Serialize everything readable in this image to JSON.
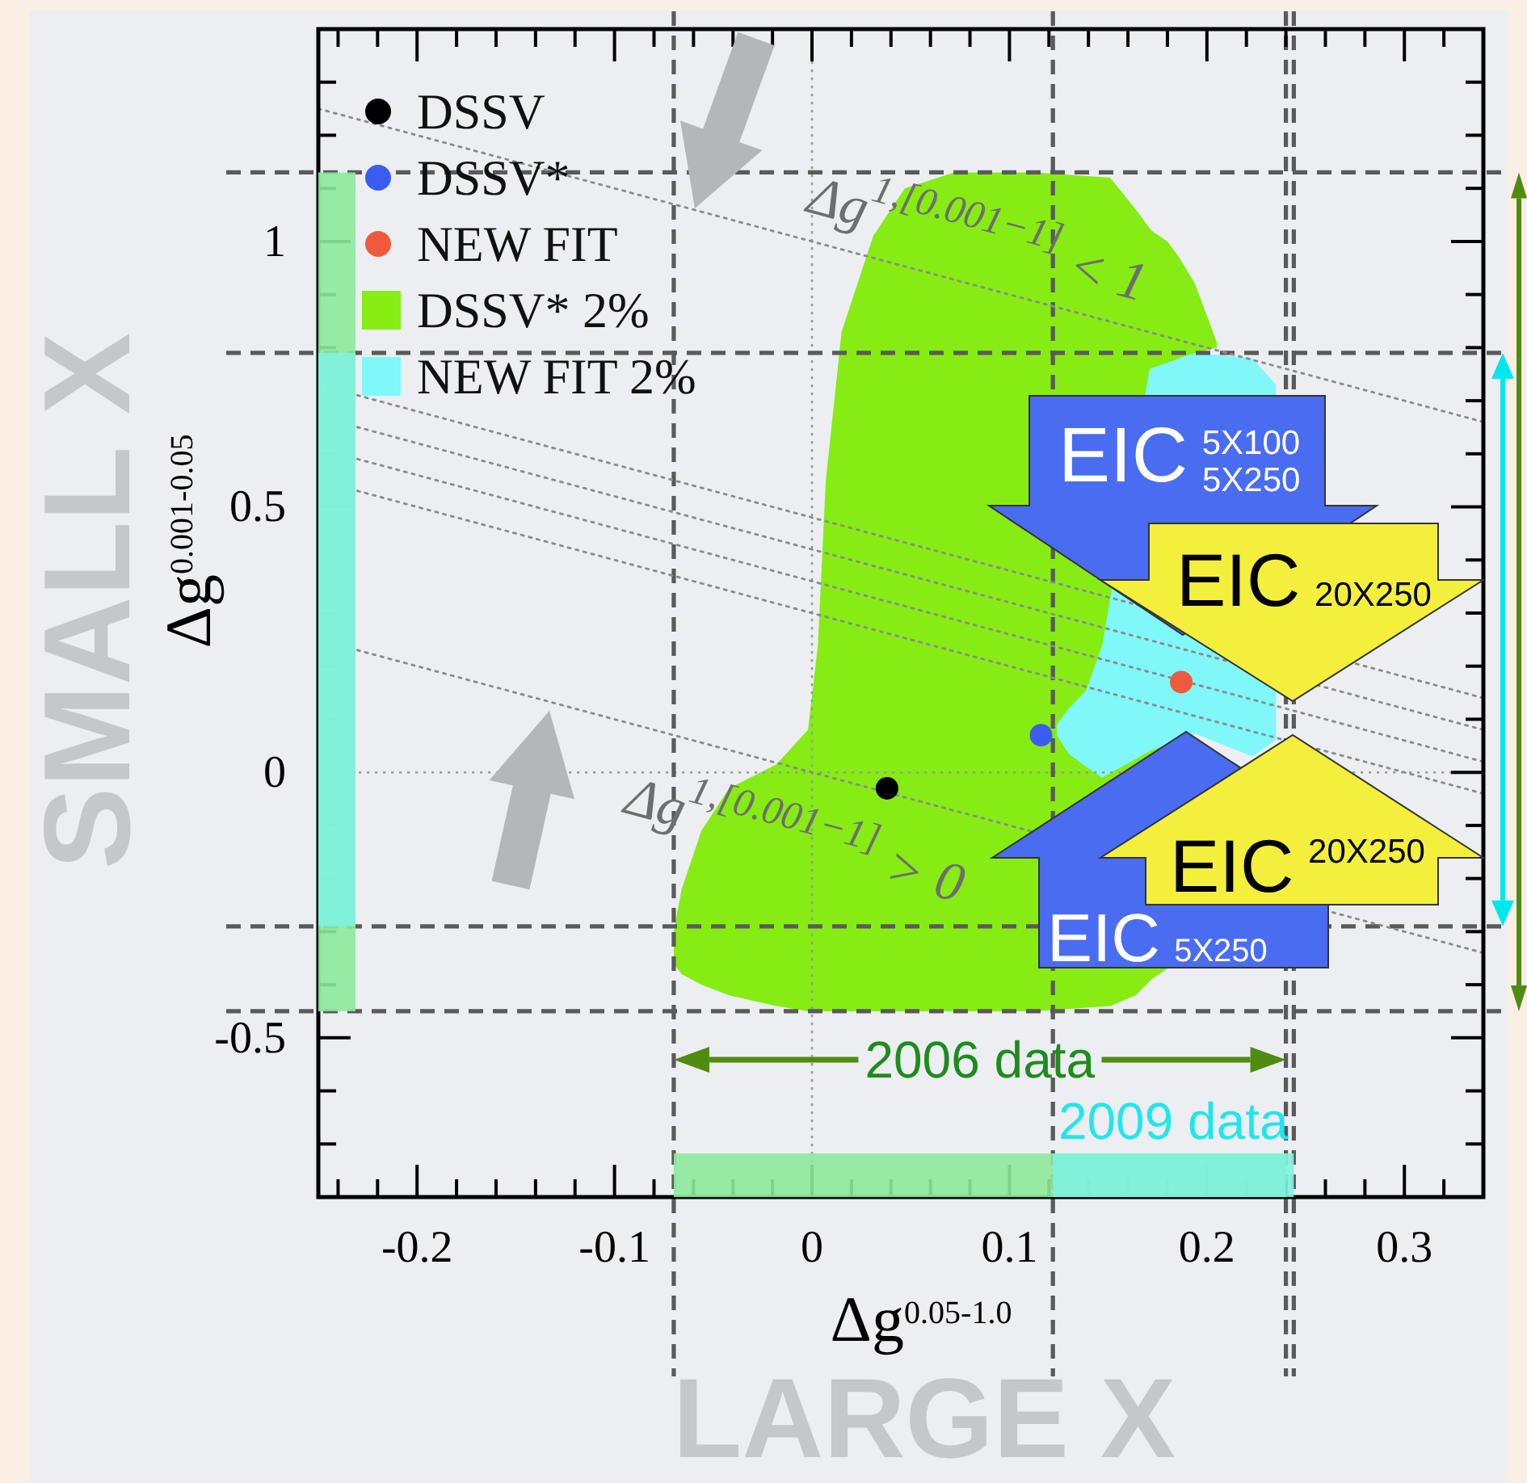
{
  "chart_data": {
    "type": "scatter",
    "xlabel": "Δg$^{0.05-1.0}$",
    "ylabel": "Δg$^{0.001-0.05}$",
    "xlim": [
      -0.25,
      0.34
    ],
    "ylim": [
      -0.8,
      1.4
    ],
    "xticks": [
      {
        "value": -0.24,
        "label": null
      },
      {
        "value": -0.22,
        "label": null
      },
      -0.2,
      {
        "value": -0.18,
        "label": null
      },
      {
        "value": -0.16,
        "label": null
      },
      {
        "value": -0.14,
        "label": null
      },
      {
        "value": -0.12,
        "label": null
      },
      -0.1,
      {
        "value": -0.08,
        "label": null
      },
      {
        "value": -0.06,
        "label": null
      },
      {
        "value": -0.04,
        "label": null
      },
      {
        "value": -0.02,
        "label": null
      },
      0,
      {
        "value": 0.02,
        "label": null
      },
      {
        "value": 0.04,
        "label": null
      },
      {
        "value": 0.06,
        "label": null
      },
      {
        "value": 0.08,
        "label": null
      },
      0.1,
      {
        "value": 0.12,
        "label": null
      },
      {
        "value": 0.14,
        "label": null
      },
      {
        "value": 0.16,
        "label": null
      },
      {
        "value": 0.18,
        "label": null
      },
      0.2,
      {
        "value": 0.22,
        "label": null
      },
      {
        "value": 0.24,
        "label": null
      },
      {
        "value": 0.26,
        "label": null
      },
      {
        "value": 0.28,
        "label": null
      },
      0.3,
      {
        "value": 0.32,
        "label": null
      }
    ],
    "yticks": [
      {
        "value": -0.7,
        "label": null
      },
      {
        "value": -0.6,
        "label": null
      },
      -0.5,
      {
        "value": -0.4,
        "label": null
      },
      {
        "value": -0.3,
        "label": null
      },
      {
        "value": -0.2,
        "label": null
      },
      {
        "value": -0.1,
        "label": null
      },
      0,
      {
        "value": 0.1,
        "label": null
      },
      {
        "value": 0.2,
        "label": null
      },
      {
        "value": 0.3,
        "label": null
      },
      {
        "value": 0.4,
        "label": null
      },
      0.5,
      {
        "value": 0.6,
        "label": null
      },
      {
        "value": 0.7,
        "label": null
      },
      {
        "value": 0.8,
        "label": null
      },
      {
        "value": 0.9,
        "label": null
      },
      1,
      {
        "value": 1.1,
        "label": null
      },
      {
        "value": 1.2,
        "label": null
      },
      {
        "value": 1.3,
        "label": null
      }
    ],
    "legend": "top left",
    "line_style": "dotted",
    "series": [
      {
        "name": "DSSV",
        "type": "scatter",
        "marker": "circle",
        "color": "#000000",
        "x": [
          0.038
        ],
        "values": [
          -0.03
        ]
      },
      {
        "name": "DSSV*",
        "type": "scatter",
        "marker": "circle",
        "color": "#3a5cf0",
        "x": [
          0.116
        ],
        "values": [
          0.07
        ]
      },
      {
        "name": "NEW FIT",
        "type": "scatter",
        "marker": "circle",
        "color": "#ee5a3c",
        "x": [
          0.187
        ],
        "values": [
          0.17
        ]
      },
      {
        "name": "DSSV* 2%",
        "type": "line",
        "color": "#86ec14",
        "x": [
          -0.07,
          -0.066,
          -0.056,
          -0.042,
          -0.018,
          -0.002,
          0.003,
          0.007,
          0.015,
          0.031,
          0.047,
          0.072,
          0.113,
          0.151,
          0.164,
          0.172,
          0.18,
          0.186,
          0.194,
          0.205
        ],
        "values": [
          null,
          null,
          null,
          null,
          null,
          null,
          null,
          null,
          null,
          null,
          null,
          null,
          null,
          null,
          null,
          null,
          null,
          null,
          null,
          null
        ],
        "upper": [
          -0.3,
          -0.22,
          -0.11,
          -0.03,
          0.015,
          0.08,
          0.24,
          0.55,
          0.83,
          1.01,
          1.1,
          1.13,
          1.13,
          1.12,
          1.06,
          1.02,
          1.0,
          0.97,
          0.92,
          0.81
        ],
        "lower": [
          -0.36,
          -0.38,
          -0.4,
          -0.42,
          -0.44,
          -0.45,
          -0.45,
          -0.45,
          -0.45,
          -0.45,
          -0.45,
          -0.45,
          -0.45,
          -0.44,
          -0.42,
          -0.39,
          -0.37,
          0.78,
          0.79,
          0.8
        ]
      },
      {
        "name": "NEW FIT 2%",
        "type": "line",
        "color": "#80f7f9",
        "x": [
          0.124,
          0.13,
          0.139,
          0.147,
          0.171,
          0.194,
          0.223,
          0.235
        ],
        "values": [
          null,
          null,
          null,
          null,
          null,
          null,
          null,
          null
        ],
        "upper": [
          0.09,
          0.12,
          0.155,
          0.24,
          0.76,
          0.79,
          0.78,
          0.73
        ],
        "lower": [
          0.07,
          0.035,
          0.01,
          -0.01,
          0.04,
          0.073,
          0.03,
          0.061
        ]
      },
      {
        "type": "line",
        "color": "#8a8a8a",
        "x": [
          -0.25,
          0.34
        ],
        "values": [
          1.25,
          0.66
        ]
      },
      {
        "type": "line",
        "color": "#8a8a8a",
        "x": [
          -0.25,
          0.34
        ],
        "values": [
          0.73,
          0.14
        ]
      },
      {
        "type": "line",
        "color": "#8a8a8a",
        "x": [
          -0.25,
          0.34
        ],
        "values": [
          0.67,
          0.08
        ]
      },
      {
        "type": "line",
        "color": "#8a8a8a",
        "x": [
          -0.25,
          0.34
        ],
        "values": [
          0.61,
          0.02
        ]
      },
      {
        "type": "line",
        "color": "#8a8a8a",
        "x": [
          -0.25,
          0.34
        ],
        "values": [
          0.55,
          -0.04
        ]
      },
      {
        "type": "line",
        "color": "#8a8a8a",
        "x": [
          -0.25,
          0.34
        ],
        "values": [
          0.25,
          -0.34
        ]
      }
    ],
    "ref_lines": [
      {
        "axis": "x",
        "value": 0,
        "color": "#9a9a9a",
        "line_style": "dotted"
      },
      {
        "axis": "y",
        "value": 0,
        "color": "#9a9a9a",
        "line_style": "dotted"
      },
      {
        "axis": "y",
        "value": 1.13,
        "color": "#5a5a5a",
        "line_style": "dashed"
      },
      {
        "axis": "y",
        "value": 0.79,
        "color": "#5a5a5a",
        "line_style": "dashed"
      },
      {
        "axis": "y",
        "value": -0.29,
        "color": "#5a5a5a",
        "line_style": "dashed"
      },
      {
        "axis": "y",
        "value": -0.45,
        "color": "#5a5a5a",
        "line_style": "dashed"
      },
      {
        "axis": "x",
        "value": -0.07,
        "color": "#5a5a5a",
        "line_style": "dashed"
      },
      {
        "axis": "x",
        "value": 0.122,
        "color": "#5a5a5a",
        "line_style": "dashed"
      },
      {
        "axis": "x",
        "value": 0.24,
        "color": "#5a5a5a",
        "line_style": "dashed"
      },
      {
        "axis": "x",
        "value": 0.244,
        "color": "#5a5a5a",
        "line_style": "dashed"
      }
    ],
    "annotations": [
      "Δg$^{1,[0.001−1]}$ < 1",
      "Δg$^{1,[0.001−1]}$ > 0",
      "EIC 5X100 5X250",
      "EIC 20X250",
      "EIC 5X250",
      "EIC 20X250",
      "2006 data",
      "2009 data",
      "SMALL X",
      "LARGE X"
    ]
  }
}
